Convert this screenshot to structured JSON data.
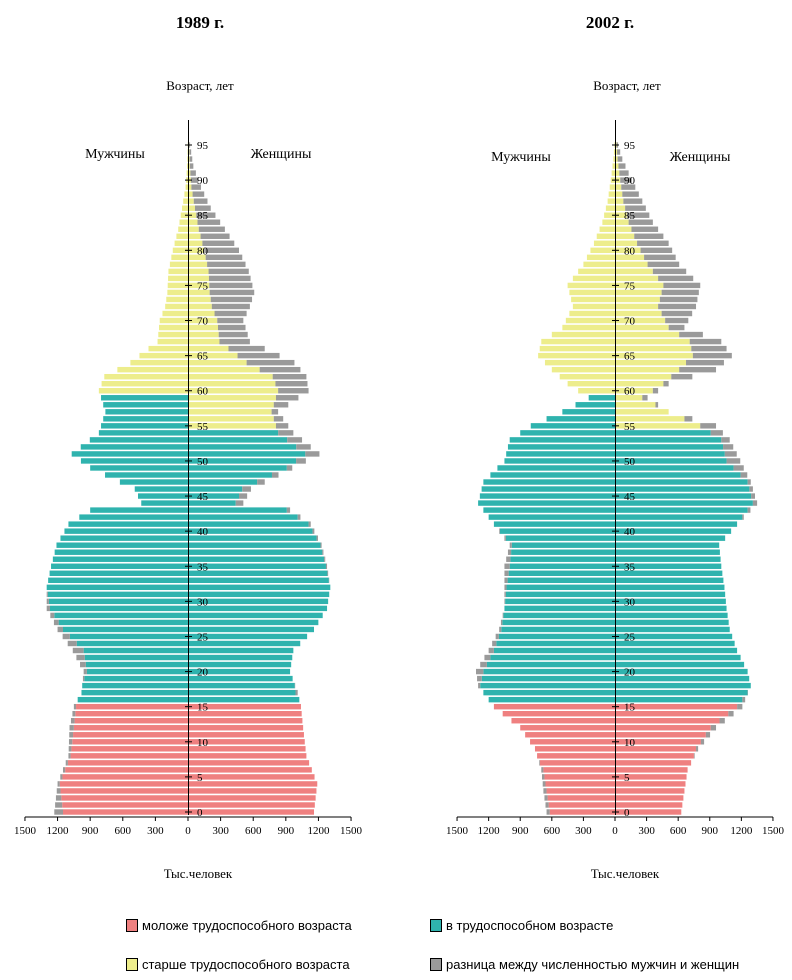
{
  "colors": {
    "young": "#ef8080",
    "working": "#2fb3ae",
    "old": "#eded8c",
    "diff": "#9a9a9a"
  },
  "legend": {
    "young": "моложе трудоспособного возраста",
    "working": "в трудоспособном возрасте",
    "old": "старше трудоспособного возраста",
    "diff": "разница между численностью мужчин и женщин"
  },
  "chart_data": [
    {
      "type": "bar",
      "title": "1989 г.",
      "ylabel": "Возраст, лет",
      "xlabel": "Тыс.человек",
      "left_label": "Мужчины",
      "right_label": "Женщины",
      "xlim": [
        1500,
        0,
        1500
      ],
      "x_ticks": [
        "1500",
        "1200",
        "900",
        "600",
        "300",
        "0",
        "300",
        "600",
        "900",
        "1200",
        "1500"
      ],
      "y_ticks": [
        "0",
        "5",
        "10",
        "15",
        "20",
        "25",
        "30",
        "35",
        "40",
        "45",
        "50",
        "55",
        "60",
        "65",
        "70",
        "75",
        "80",
        "85",
        "90",
        "95"
      ],
      "work_age": {
        "men_from": 16,
        "men_to": 59,
        "women_from": 16,
        "women_to": 54
      },
      "knots_age": [
        0,
        4,
        8,
        12,
        15,
        17,
        20,
        23,
        26,
        29,
        32,
        35,
        38,
        41,
        43,
        44,
        46,
        49,
        51,
        54,
        57,
        60,
        62,
        64,
        67,
        70,
        72,
        74,
        77,
        80,
        83,
        86,
        89,
        92,
        95
      ],
      "men": [
        1230,
        1200,
        1100,
        1090,
        1050,
        980,
        960,
        1060,
        1200,
        1300,
        1300,
        1260,
        1210,
        1100,
        900,
        430,
        490,
        900,
        1070,
        820,
        760,
        820,
        770,
        530,
        280,
        260,
        210,
        190,
        180,
        140,
        90,
        55,
        22,
        8,
        2
      ],
      "women": [
        1150,
        1180,
        1080,
        1050,
        1030,
        1000,
        930,
        960,
        1150,
        1270,
        1300,
        1270,
        1220,
        1120,
        930,
        500,
        570,
        950,
        1200,
        960,
        820,
        1100,
        1080,
        970,
        560,
        500,
        560,
        600,
        550,
        460,
        330,
        200,
        110,
        40,
        10
      ]
    },
    {
      "type": "bar",
      "title": "2002 г.",
      "ylabel": "Возраст, лет",
      "xlabel": "Тыс.человек",
      "left_label": "Мужчины",
      "right_label": "Женщины",
      "xlim": [
        1500,
        0,
        1500
      ],
      "x_ticks": [
        "1500",
        "1200",
        "900",
        "600",
        "300",
        "0",
        "300",
        "600",
        "900",
        "1200",
        "1500"
      ],
      "y_ticks": [
        "0",
        "5",
        "10",
        "15",
        "20",
        "25",
        "30",
        "35",
        "40",
        "45",
        "50",
        "55",
        "60",
        "65",
        "70",
        "75",
        "80",
        "85",
        "90",
        "95"
      ],
      "work_age": {
        "men_from": 16,
        "men_to": 59,
        "women_from": 16,
        "women_to": 54
      },
      "knots_age": [
        0,
        3,
        6,
        9,
        12,
        15,
        18,
        20,
        23,
        26,
        29,
        32,
        35,
        38,
        41,
        44,
        47,
        50,
        53,
        55,
        57,
        59,
        61,
        63,
        65,
        67,
        69,
        72,
        75,
        78,
        81,
        84,
        87,
        90,
        93,
        95
      ],
      "men": [
        650,
        680,
        700,
        760,
        900,
        1150,
        1300,
        1320,
        1200,
        1100,
        1050,
        1050,
        1050,
        1000,
        1150,
        1300,
        1250,
        1050,
        1000,
        800,
        500,
        250,
        450,
        600,
        730,
        700,
        500,
        400,
        450,
        300,
        200,
        120,
        70,
        40,
        15,
        5
      ],
      "women": [
        620,
        650,
        680,
        780,
        950,
        1200,
        1280,
        1250,
        1150,
        1080,
        1050,
        1030,
        1000,
        980,
        1150,
        1340,
        1280,
        1180,
        1080,
        950,
        500,
        300,
        500,
        950,
        1100,
        1000,
        650,
        760,
        800,
        600,
        500,
        350,
        250,
        150,
        60,
        20
      ]
    }
  ]
}
